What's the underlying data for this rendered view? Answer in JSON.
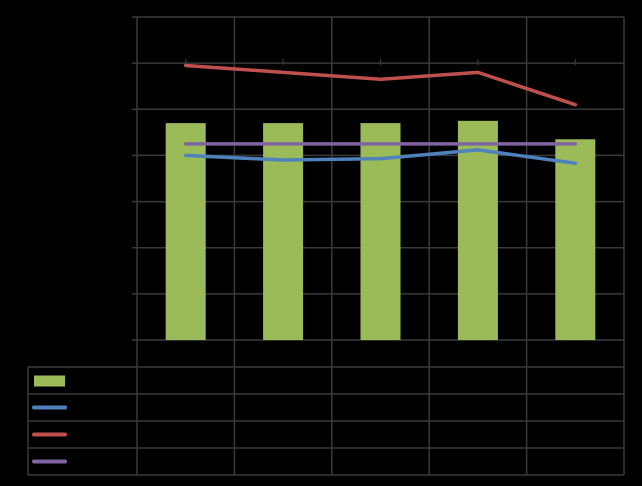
{
  "chart_data": {
    "type": "bar",
    "title": "",
    "xlabel": "",
    "ylabel": "",
    "categories": [
      "",
      "",
      "",
      "",
      ""
    ],
    "ylim": [
      0,
      7
    ],
    "grid": true,
    "legend_placement": "bottom-table",
    "series": [
      {
        "kind": "bar",
        "color": "#9BBB59",
        "values": [
          4.7,
          4.7,
          4.7,
          4.75,
          4.35
        ]
      },
      {
        "kind": "line",
        "color": "#4F81BD",
        "values": [
          4.0,
          3.9,
          3.93,
          4.12,
          3.83
        ]
      },
      {
        "kind": "line",
        "color": "#C0504D",
        "values": [
          5.95,
          5.8,
          5.65,
          5.8,
          5.1
        ]
      },
      {
        "kind": "line",
        "color": "#8064A2",
        "values": [
          4.25,
          4.25,
          4.25,
          4.25,
          4.25
        ]
      }
    ]
  },
  "colors": {
    "background": "#000000",
    "grid": "#3a3a3a",
    "table_border": "#3a3a3a"
  }
}
